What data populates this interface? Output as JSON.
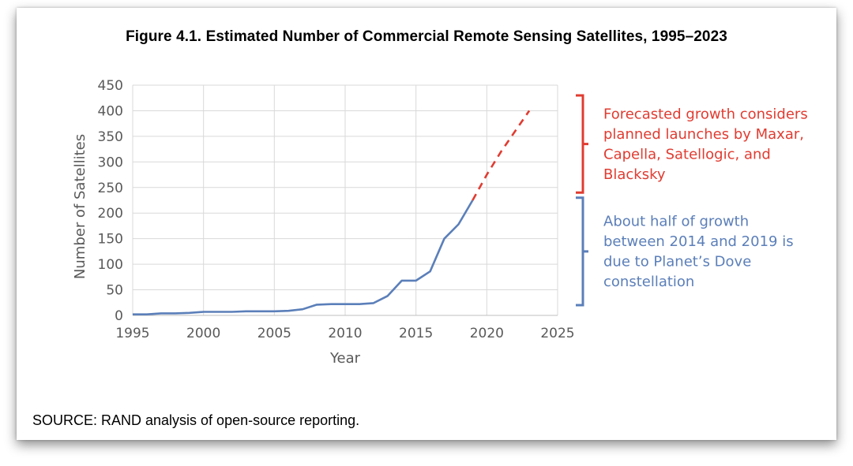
{
  "figure": {
    "title": "Figure 4.1. Estimated Number of Commercial Remote Sensing Satellites, 1995–2023",
    "source": "SOURCE: RAND analysis of open-source reporting."
  },
  "annotations": [
    {
      "lines": [
        "Forecasted growth considers",
        "planned launches by Maxar,",
        "Capella, Satellogic, and",
        "Blacksky"
      ],
      "color": "#e03c31",
      "bracket_from": 240,
      "bracket_to": 430
    },
    {
      "lines": [
        "About half of growth",
        "between 2014 and 2019 is",
        "due to Planet’s Dove",
        "constellation"
      ],
      "color": "#5b7fb9",
      "bracket_from": 20,
      "bracket_to": 230
    }
  ],
  "chart_data": {
    "type": "line",
    "title": "",
    "xlabel": "Year",
    "ylabel": "Number of Satellites",
    "xlim": [
      1995,
      2025
    ],
    "ylim": [
      0,
      450
    ],
    "xticks": [
      1995,
      2000,
      2005,
      2010,
      2015,
      2020,
      2025
    ],
    "yticks": [
      0,
      50,
      100,
      150,
      200,
      250,
      300,
      350,
      400,
      450
    ],
    "grid": true,
    "series": [
      {
        "style": "solid",
        "color": "#5b7fb9",
        "x": [
          1995,
          1996,
          1997,
          1998,
          1999,
          2000,
          2001,
          2002,
          2003,
          2004,
          2005,
          2006,
          2007,
          2008,
          2009,
          2010,
          2011,
          2012,
          2013,
          2014,
          2015,
          2016,
          2017,
          2018,
          2019
        ],
        "y": [
          2,
          2,
          4,
          4,
          5,
          7,
          7,
          7,
          8,
          8,
          8,
          9,
          12,
          21,
          22,
          22,
          22,
          24,
          38,
          68,
          68,
          86,
          150,
          178,
          225
        ]
      },
      {
        "style": "dashed",
        "color": "#e03c31",
        "x": [
          2019,
          2020,
          2021,
          2022,
          2023
        ],
        "y": [
          225,
          275,
          320,
          360,
          400
        ]
      }
    ]
  }
}
